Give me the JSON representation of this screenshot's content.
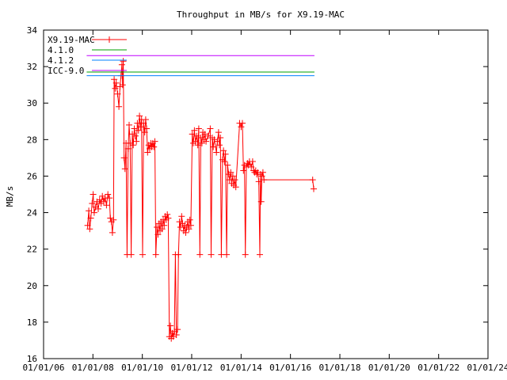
{
  "chart_data": {
    "type": "line",
    "title": "Throughput in MB/s for X9.19-MAC",
    "xlabel": "",
    "ylabel": "MB/s",
    "xlim": [
      "2006-01-01",
      "2024-01-01"
    ],
    "ylim": [
      16,
      34
    ],
    "grid": false,
    "legend_position": "top-left",
    "y_ticks": [
      16,
      18,
      20,
      22,
      24,
      26,
      28,
      30,
      32,
      34
    ],
    "x_tick_values": [
      "2006-01-01",
      "2008-01-01",
      "2010-01-01",
      "2012-01-01",
      "2014-01-01",
      "2016-01-01",
      "2018-01-01",
      "2020-01-01",
      "2022-01-01",
      "2024-01-01"
    ],
    "x_tick_labels": [
      "01/01/06",
      "01/01/08",
      "01/01/10",
      "01/01/12",
      "01/01/14",
      "01/01/16",
      "01/01/18",
      "01/01/20",
      "01/01/22",
      "01/01/24"
    ],
    "series": [
      {
        "name": "X9.19-MAC",
        "color": "#ff0000",
        "marker": "plus",
        "points": [
          [
            "2007-10-15",
            23.3
          ],
          [
            "2007-11-01",
            24.1
          ],
          [
            "2007-11-15",
            23.1
          ],
          [
            "2007-12-01",
            23.7
          ],
          [
            "2007-12-20",
            24.5
          ],
          [
            "2008-01-05",
            25.0
          ],
          [
            "2008-01-20",
            24.0
          ],
          [
            "2008-02-10",
            24.3
          ],
          [
            "2008-03-01",
            24.6
          ],
          [
            "2008-03-20",
            24.2
          ],
          [
            "2008-04-10",
            24.7
          ],
          [
            "2008-05-01",
            24.5
          ],
          [
            "2008-05-20",
            24.9
          ],
          [
            "2008-06-10",
            24.6
          ],
          [
            "2008-07-01",
            24.8
          ],
          [
            "2008-07-20",
            24.4
          ],
          [
            "2008-08-10",
            25.0
          ],
          [
            "2008-09-01",
            24.8
          ],
          [
            "2008-09-15",
            23.7
          ],
          [
            "2008-10-01",
            23.5
          ],
          [
            "2008-10-15",
            22.9
          ],
          [
            "2008-11-01",
            23.6
          ],
          [
            "2008-11-10",
            31.3
          ],
          [
            "2008-11-25",
            30.8
          ],
          [
            "2008-12-10",
            31.1
          ],
          [
            "2009-01-01",
            30.5
          ],
          [
            "2009-01-20",
            29.8
          ],
          [
            "2009-02-05",
            30.9
          ],
          [
            "2009-02-20",
            31.5
          ],
          [
            "2009-03-05",
            32.1
          ],
          [
            "2009-03-15",
            31.0
          ],
          [
            "2009-03-25",
            32.3
          ],
          [
            "2009-04-05",
            27.0
          ],
          [
            "2009-04-20",
            26.4
          ],
          [
            "2009-05-05",
            27.8
          ],
          [
            "2009-05-20",
            21.7
          ],
          [
            "2009-06-05",
            27.5
          ],
          [
            "2009-06-20",
            28.8
          ],
          [
            "2009-07-05",
            27.8
          ],
          [
            "2009-07-20",
            21.7
          ],
          [
            "2009-08-05",
            28.3
          ],
          [
            "2009-08-20",
            27.7
          ],
          [
            "2009-09-05",
            28.6
          ],
          [
            "2009-09-20",
            28.2
          ],
          [
            "2009-10-05",
            27.9
          ],
          [
            "2009-10-20",
            28.9
          ],
          [
            "2009-11-05",
            28.5
          ],
          [
            "2009-11-20",
            29.3
          ],
          [
            "2009-12-05",
            28.7
          ],
          [
            "2009-12-20",
            29.1
          ],
          [
            "2010-01-05",
            21.7
          ],
          [
            "2010-01-20",
            28.9
          ],
          [
            "2010-02-05",
            28.4
          ],
          [
            "2010-02-20",
            29.1
          ],
          [
            "2010-03-05",
            28.6
          ],
          [
            "2010-03-20",
            27.3
          ],
          [
            "2010-04-05",
            27.7
          ],
          [
            "2010-04-20",
            27.5
          ],
          [
            "2010-05-05",
            27.8
          ],
          [
            "2010-05-20",
            27.6
          ],
          [
            "2010-06-05",
            27.8
          ],
          [
            "2010-06-20",
            27.6
          ],
          [
            "2010-07-05",
            27.9
          ],
          [
            "2010-07-20",
            21.7
          ],
          [
            "2010-08-05",
            23.2
          ],
          [
            "2010-08-20",
            22.8
          ],
          [
            "2010-09-05",
            23.4
          ],
          [
            "2010-09-20",
            23.0
          ],
          [
            "2010-10-05",
            23.5
          ],
          [
            "2010-10-20",
            23.1
          ],
          [
            "2010-11-05",
            23.6
          ],
          [
            "2010-11-20",
            23.3
          ],
          [
            "2010-12-05",
            23.8
          ],
          [
            "2010-12-20",
            23.6
          ],
          [
            "2011-01-05",
            23.9
          ],
          [
            "2011-01-20",
            23.7
          ],
          [
            "2011-02-05",
            17.2
          ],
          [
            "2011-02-20",
            17.8
          ],
          [
            "2011-03-05",
            17.1
          ],
          [
            "2011-03-20",
            17.4
          ],
          [
            "2011-04-05",
            17.2
          ],
          [
            "2011-04-20",
            17.5
          ],
          [
            "2011-05-05",
            21.7
          ],
          [
            "2011-05-20",
            17.3
          ],
          [
            "2011-06-05",
            17.6
          ],
          [
            "2011-06-20",
            21.7
          ],
          [
            "2011-07-05",
            23.5
          ],
          [
            "2011-07-20",
            23.2
          ],
          [
            "2011-08-05",
            23.8
          ],
          [
            "2011-08-20",
            23.4
          ],
          [
            "2011-09-05",
            23.0
          ],
          [
            "2011-09-20",
            23.3
          ],
          [
            "2011-10-05",
            22.9
          ],
          [
            "2011-10-20",
            23.2
          ],
          [
            "2011-11-05",
            23.5
          ],
          [
            "2011-11-20",
            23.1
          ],
          [
            "2011-12-05",
            23.6
          ],
          [
            "2011-12-20",
            23.3
          ],
          [
            "2012-01-10",
            28.3
          ],
          [
            "2012-01-25",
            27.8
          ],
          [
            "2012-02-10",
            28.5
          ],
          [
            "2012-02-25",
            27.9
          ],
          [
            "2012-03-15",
            28.2
          ],
          [
            "2012-04-01",
            27.7
          ],
          [
            "2012-04-15",
            28.6
          ],
          [
            "2012-05-01",
            21.7
          ],
          [
            "2012-05-15",
            28.1
          ],
          [
            "2012-06-01",
            27.8
          ],
          [
            "2012-06-15",
            28.4
          ],
          [
            "2012-07-01",
            28.0
          ],
          [
            "2012-07-15",
            28.3
          ],
          [
            "2012-08-01",
            27.9
          ],
          [
            "2012-09-01",
            28.2
          ],
          [
            "2012-10-01",
            28.6
          ],
          [
            "2012-10-15",
            21.7
          ],
          [
            "2012-11-01",
            28.1
          ],
          [
            "2012-11-15",
            27.6
          ],
          [
            "2012-12-01",
            28.0
          ],
          [
            "2013-01-01",
            27.3
          ],
          [
            "2013-01-15",
            27.9
          ],
          [
            "2013-02-01",
            28.4
          ],
          [
            "2013-02-15",
            27.7
          ],
          [
            "2013-03-01",
            28.1
          ],
          [
            "2013-03-15",
            21.7
          ],
          [
            "2013-04-01",
            26.9
          ],
          [
            "2013-04-15",
            27.4
          ],
          [
            "2013-05-01",
            26.8
          ],
          [
            "2013-05-15",
            27.2
          ],
          [
            "2013-06-01",
            21.7
          ],
          [
            "2013-06-15",
            26.6
          ],
          [
            "2013-07-01",
            26.1
          ],
          [
            "2013-07-15",
            25.8
          ],
          [
            "2013-08-01",
            26.2
          ],
          [
            "2013-08-15",
            25.6
          ],
          [
            "2013-09-01",
            26.0
          ],
          [
            "2013-09-15",
            25.5
          ],
          [
            "2013-10-01",
            25.8
          ],
          [
            "2013-10-15",
            25.4
          ],
          [
            "2013-12-10",
            28.9
          ],
          [
            "2014-01-01",
            28.7
          ],
          [
            "2014-01-20",
            28.9
          ],
          [
            "2014-02-05",
            26.3
          ],
          [
            "2014-02-20",
            26.6
          ],
          [
            "2014-03-05",
            21.7
          ],
          [
            "2014-03-20",
            26.5
          ],
          [
            "2014-04-05",
            26.7
          ],
          [
            "2014-04-20",
            26.6
          ],
          [
            "2014-05-05",
            26.8
          ],
          [
            "2014-06-01",
            26.5
          ],
          [
            "2014-06-20",
            26.8
          ],
          [
            "2014-07-05",
            26.3
          ],
          [
            "2014-07-20",
            26.2
          ],
          [
            "2014-08-05",
            26.3
          ],
          [
            "2014-08-20",
            26.1
          ],
          [
            "2014-09-05",
            26.2
          ],
          [
            "2014-09-20",
            25.7
          ],
          [
            "2014-10-05",
            21.7
          ],
          [
            "2014-10-15",
            26.1
          ],
          [
            "2014-10-25",
            24.6
          ],
          [
            "2014-11-05",
            26.0
          ],
          [
            "2014-11-20",
            26.2
          ],
          [
            "2014-12-05",
            25.8
          ],
          [
            "2016-11-25",
            25.8
          ],
          [
            "2016-12-10",
            25.3
          ]
        ]
      },
      {
        "name": "4.1.0",
        "color": "#00a000",
        "marker": "none",
        "points": [
          [
            "2007-10-01",
            31.7
          ],
          [
            "2016-12-20",
            31.7
          ]
        ]
      },
      {
        "name": "4.1.2",
        "color": "#0080ff",
        "marker": "none",
        "points": [
          [
            "2007-10-01",
            31.5
          ],
          [
            "2016-12-20",
            31.5
          ]
        ]
      },
      {
        "name": "ICC-9.0",
        "color": "#c000ff",
        "marker": "none",
        "points": [
          [
            "2007-10-01",
            32.6
          ],
          [
            "2016-12-20",
            32.6
          ]
        ]
      }
    ]
  }
}
